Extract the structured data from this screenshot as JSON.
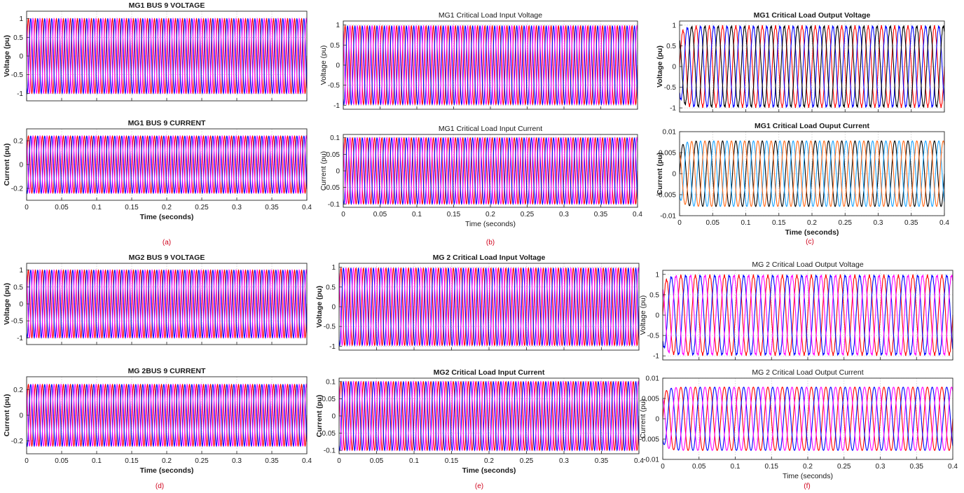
{
  "captions": [
    "(a)",
    "(b)",
    "(c)",
    "(d)",
    "(e)",
    "(f)"
  ],
  "colors": {
    "red": "#ff0000",
    "blue": "#0000ff",
    "magenta": "#ff00ff",
    "black": "#000000",
    "light_blue": "#1aa3ff",
    "orange": "#ff6a1a",
    "grid": "#c8c8c8",
    "caption": "#d0021b"
  },
  "chart_data": [
    {
      "type": "line",
      "title": "MG1 BUS 9 VOLTAGE",
      "xlabel": "",
      "ylabel": "Voltage (pu)",
      "xlim": [
        0,
        0.4
      ],
      "ylim": [
        -1.2,
        1.2
      ],
      "yticks": [
        "1",
        "0.5",
        "0",
        "-0.5",
        "-1"
      ],
      "xticks": [],
      "grid": true,
      "frequency_hz": 100,
      "amplitude": 1.0,
      "phases_deg": [
        0,
        -120,
        120
      ],
      "series": [
        {
          "color": "red"
        },
        {
          "color": "blue"
        },
        {
          "color": "magenta"
        }
      ]
    },
    {
      "type": "line",
      "title": "MG1 BUS 9 CURRENT",
      "xlabel": "Time (seconds)",
      "ylabel": "Current (pu)",
      "xlim": [
        0,
        0.4
      ],
      "ylim": [
        -0.3,
        0.3
      ],
      "yticks": [
        "0.2",
        "0",
        "-0.2"
      ],
      "xticks": [
        "0",
        "0.05",
        "0.1",
        "0.15",
        "0.2",
        "0.25",
        "0.3",
        "0.35",
        "0.4"
      ],
      "grid": true,
      "frequency_hz": 100,
      "amplitude": 0.24,
      "phases_deg": [
        0,
        -120,
        120
      ],
      "series": [
        {
          "color": "red"
        },
        {
          "color": "blue"
        },
        {
          "color": "magenta"
        }
      ]
    },
    {
      "type": "line",
      "title": "MG1 Critical Load Input Voltage",
      "xlabel": "",
      "ylabel": "Voltage (pu)",
      "xlim": [
        0,
        0.4
      ],
      "ylim": [
        -1.1,
        1.1
      ],
      "yticks": [
        "1",
        "0.5",
        "0",
        "-0.5",
        "-1"
      ],
      "xticks": [],
      "grid": true,
      "frequency_hz": 100,
      "amplitude": 0.98,
      "phases_deg": [
        0,
        -120,
        120
      ],
      "series": [
        {
          "color": "red"
        },
        {
          "color": "blue"
        },
        {
          "color": "magenta"
        }
      ]
    },
    {
      "type": "line",
      "title": "MG1 Critical Load Input Current",
      "xlabel": "Time (seconds)",
      "ylabel": "Current (pu)",
      "xlim": [
        0,
        0.4
      ],
      "ylim": [
        -0.11,
        0.11
      ],
      "yticks": [
        "0.1",
        "0.05",
        "0",
        "-0.05",
        "-0.1"
      ],
      "xticks": [
        "0",
        "0.05",
        "0.1",
        "0.15",
        "0.2",
        "0.25",
        "0.3",
        "0.35",
        "0.4"
      ],
      "grid": true,
      "frequency_hz": 100,
      "amplitude": 0.1,
      "phases_deg": [
        0,
        -120,
        120
      ],
      "series": [
        {
          "color": "red"
        },
        {
          "color": "blue"
        },
        {
          "color": "magenta"
        }
      ]
    },
    {
      "type": "line",
      "title": "MG1 Critical Load Output Voltage",
      "xlabel": "",
      "ylabel": "Voltage (pu)",
      "xlim": [
        0,
        0.4
      ],
      "ylim": [
        -1.1,
        1.1
      ],
      "yticks": [
        "1",
        "0.5",
        "0",
        "-0.5",
        "-1"
      ],
      "xticks": [],
      "grid": true,
      "frequency_hz": 50,
      "amplitude": 0.97,
      "phases_deg": [
        0,
        -120,
        120
      ],
      "series": [
        {
          "color": "red"
        },
        {
          "color": "blue"
        },
        {
          "color": "black"
        }
      ]
    },
    {
      "type": "line",
      "title": "MG1 Critical Load Ouput Current",
      "xlabel": "Time (seconds)",
      "ylabel": "Current (pu)",
      "xlim": [
        0,
        0.4
      ],
      "ylim": [
        -0.01,
        0.01
      ],
      "yticks": [
        "0.01",
        "0.005",
        "0",
        "-0.005",
        "-0.01"
      ],
      "xticks": [
        "0",
        "0.05",
        "0.1",
        "0.15",
        "0.2",
        "0.25",
        "0.3",
        "0.35",
        "0.4"
      ],
      "grid": true,
      "frequency_hz": 50,
      "amplitude": 0.0078,
      "phases_deg": [
        0,
        -120,
        120
      ],
      "series": [
        {
          "color": "black"
        },
        {
          "color": "light_blue"
        },
        {
          "color": "orange"
        }
      ]
    },
    {
      "type": "line",
      "title": "MG2 BUS 9 VOLTAGE",
      "xlabel": "",
      "ylabel": "Voltage (pu)",
      "xlim": [
        0,
        0.4
      ],
      "ylim": [
        -1.2,
        1.2
      ],
      "yticks": [
        "1",
        "0.5",
        "0",
        "-0.5",
        "-1"
      ],
      "xticks": [],
      "grid": true,
      "frequency_hz": 100,
      "amplitude": 1.0,
      "phases_deg": [
        0,
        -120,
        120
      ],
      "series": [
        {
          "color": "red"
        },
        {
          "color": "blue"
        },
        {
          "color": "magenta"
        }
      ]
    },
    {
      "type": "line",
      "title": "MG 2BUS 9 CURRENT",
      "xlabel": "Time (seconds)",
      "ylabel": "Current (pu)",
      "xlim": [
        0,
        0.4
      ],
      "ylim": [
        -0.3,
        0.3
      ],
      "yticks": [
        "0.2",
        "0",
        "-0.2"
      ],
      "xticks": [
        "0",
        "0.05",
        "0.1",
        "0.15",
        "0.2",
        "0.25",
        "0.3",
        "0.35",
        "0.4"
      ],
      "grid": true,
      "frequency_hz": 100,
      "amplitude": 0.24,
      "phases_deg": [
        0,
        -120,
        120
      ],
      "series": [
        {
          "color": "red"
        },
        {
          "color": "blue"
        },
        {
          "color": "magenta"
        }
      ]
    },
    {
      "type": "line",
      "title": "MG 2 Critical Load Input Voltage",
      "xlabel": "",
      "ylabel": "Voltage (pu)",
      "xlim": [
        0,
        0.4
      ],
      "ylim": [
        -1.1,
        1.1
      ],
      "yticks": [
        "1",
        "0.5",
        "0",
        "-0.5",
        "-1"
      ],
      "xticks": [],
      "grid": true,
      "frequency_hz": 100,
      "amplitude": 0.98,
      "phases_deg": [
        0,
        -120,
        120
      ],
      "series": [
        {
          "color": "red"
        },
        {
          "color": "blue"
        },
        {
          "color": "magenta"
        }
      ]
    },
    {
      "type": "line",
      "title": "MG2 Critical Load Input Current",
      "xlabel": "Time (seconds)",
      "ylabel": "Current (pu)",
      "xlim": [
        0,
        0.4
      ],
      "ylim": [
        -0.11,
        0.11
      ],
      "yticks": [
        "0.1",
        "0.05",
        "0",
        "-0.05",
        "-0.1"
      ],
      "xticks": [
        "0",
        "0.05",
        "0.1",
        "0.15",
        "0.2",
        "0.25",
        "0.3",
        "0.35",
        "0.4"
      ],
      "grid": true,
      "frequency_hz": 100,
      "amplitude": 0.1,
      "phases_deg": [
        0,
        -120,
        120
      ],
      "series": [
        {
          "color": "red"
        },
        {
          "color": "blue"
        },
        {
          "color": "magenta"
        }
      ]
    },
    {
      "type": "line",
      "title": "MG 2 Critical Load Output Voltage",
      "xlabel": "",
      "ylabel": "Voltage (pu)",
      "xlim": [
        0,
        0.4
      ],
      "ylim": [
        -1.1,
        1.1
      ],
      "yticks": [
        "1",
        "0.5",
        "0",
        "-0.5",
        "-1"
      ],
      "xticks": [],
      "grid": true,
      "frequency_hz": 50,
      "amplitude": 0.97,
      "phases_deg": [
        0,
        -120,
        120
      ],
      "series": [
        {
          "color": "red"
        },
        {
          "color": "blue"
        },
        {
          "color": "magenta"
        }
      ]
    },
    {
      "type": "line",
      "title": "MG 2 Critical Load Output Current",
      "xlabel": "Time (seconds)",
      "ylabel": "Current (pu)",
      "xlim": [
        0,
        0.4
      ],
      "ylim": [
        -0.01,
        0.01
      ],
      "yticks": [
        "0.01",
        "0.005",
        "0",
        "-0.005",
        "-0.01"
      ],
      "xticks": [
        "0",
        "0.05",
        "0.1",
        "0.15",
        "0.2",
        "0.25",
        "0.3",
        "0.35",
        "0.4"
      ],
      "grid": true,
      "frequency_hz": 50,
      "amplitude": 0.0078,
      "phases_deg": [
        0,
        -120,
        120
      ],
      "series": [
        {
          "color": "red"
        },
        {
          "color": "blue"
        },
        {
          "color": "magenta"
        }
      ]
    }
  ]
}
